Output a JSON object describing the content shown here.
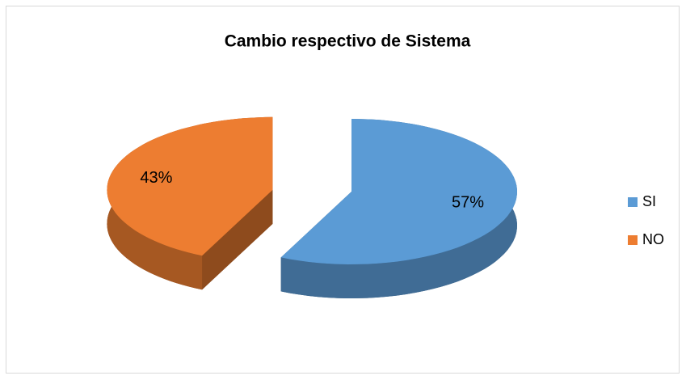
{
  "chart_data": {
    "type": "pie",
    "title": "Cambio respectivo de Sistema",
    "categories": [
      "SI",
      "NO"
    ],
    "values": [
      57,
      43
    ],
    "value_labels": [
      "57%",
      "43%"
    ],
    "colors": [
      "#5b9bd5",
      "#ed7d31"
    ],
    "legend": "right"
  }
}
